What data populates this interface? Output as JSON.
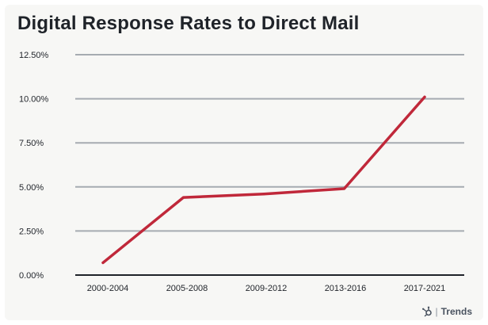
{
  "chart_data": {
    "type": "line",
    "title": "Digital Response Rates to Direct Mail",
    "xlabel": "",
    "ylabel": "",
    "categories": [
      "2000-2004",
      "2005-2008",
      "2009-2012",
      "2013-2016",
      "2017-2021"
    ],
    "series": [
      {
        "values": [
          0.7,
          4.4,
          4.6,
          4.9,
          10.1
        ],
        "color": "#c0283a"
      }
    ],
    "y_ticks": [
      "0.00%",
      "2.50%",
      "5.00%",
      "7.50%",
      "10.00%",
      "12.50%"
    ],
    "ylim": [
      0,
      12.5
    ],
    "grid": true,
    "legend": "none"
  },
  "branding": {
    "logo_icon": "hubspot-sprocket-icon",
    "separator": "|",
    "name": "Trends"
  }
}
